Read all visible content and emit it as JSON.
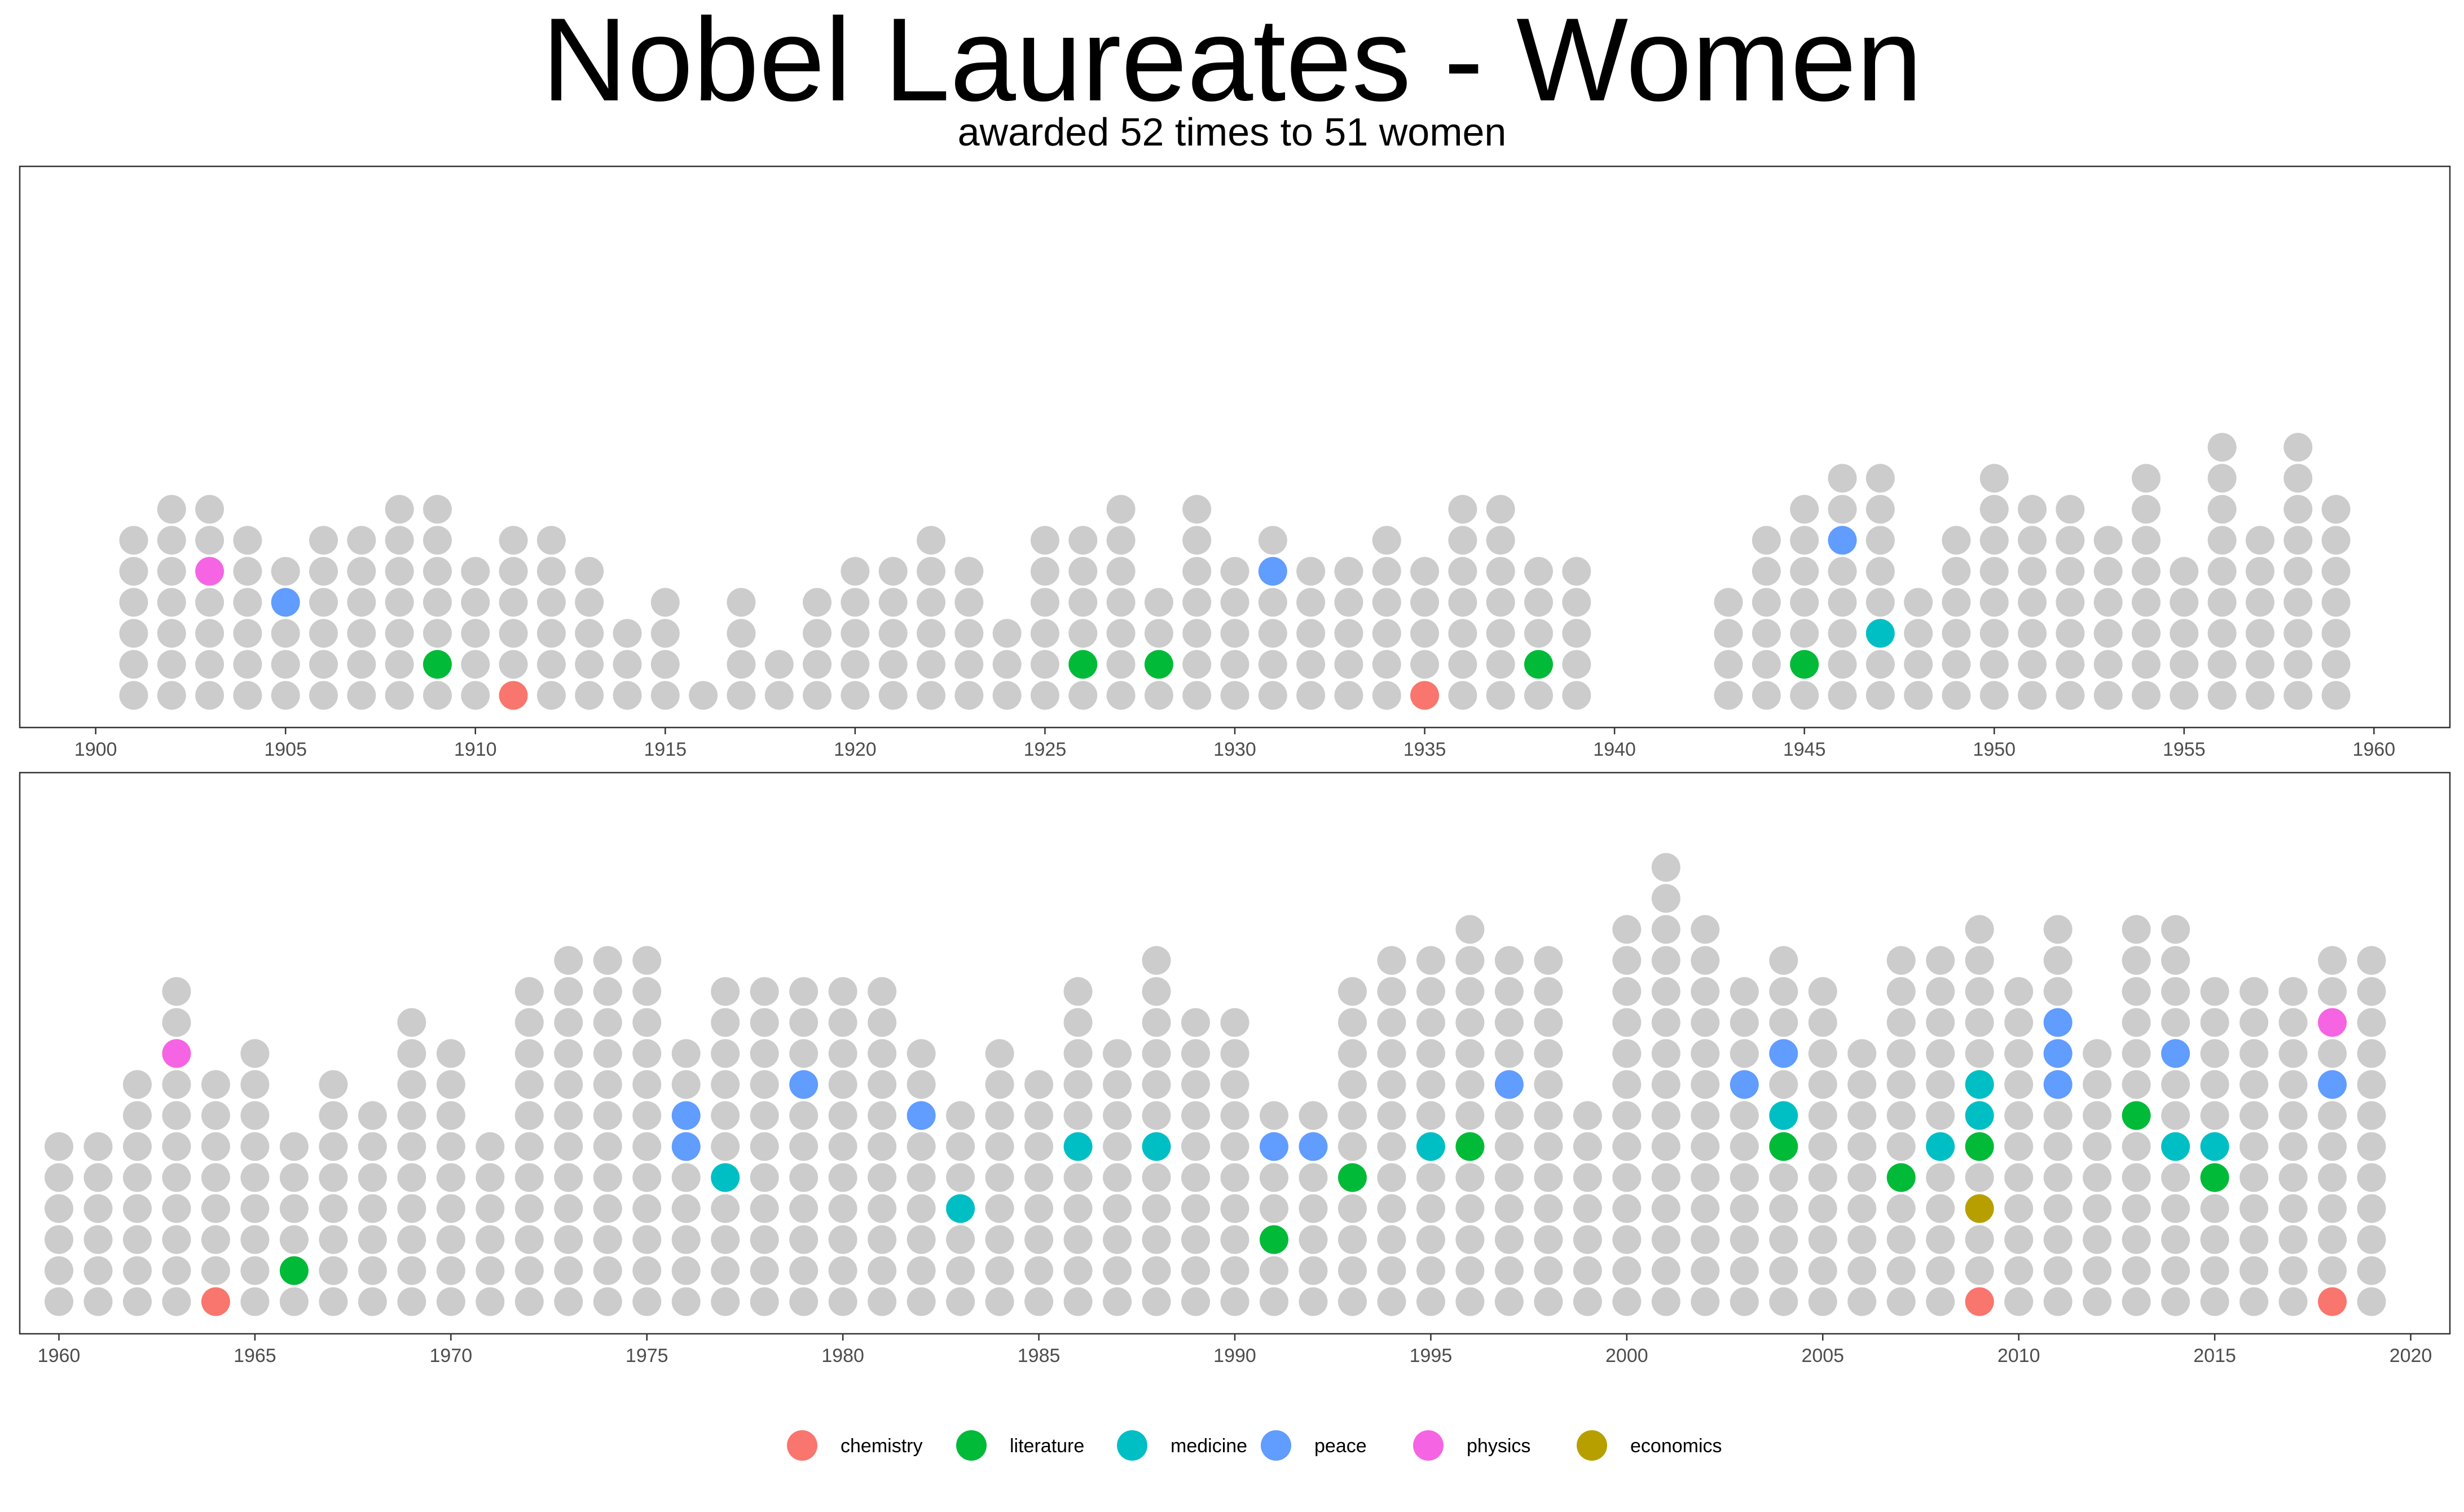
{
  "title": "Nobel Laureates - Women",
  "subtitle": "awarded 52 times to 51 women",
  "chart_data": {
    "type": "scatter",
    "description_style": "dot/waffle column chart: one dot per Nobel Prize awarded in a year; colored dots are prizes awarded to women",
    "background_color": "#cccccc",
    "legend": {
      "position": "bottom",
      "entries": [
        {
          "label": "chemistry",
          "color": "#F8766D"
        },
        {
          "label": "literature",
          "color": "#00BA38"
        },
        {
          "label": "medicine",
          "color": "#00BFC4"
        },
        {
          "label": "peace",
          "color": "#619CFF"
        },
        {
          "label": "physics",
          "color": "#F564E3"
        },
        {
          "label": "economics",
          "color": "#B79F00"
        }
      ]
    },
    "panels": [
      {
        "xlim": [
          1898,
          1962
        ],
        "x_ticks": [
          "1900",
          "1905",
          "1910",
          "1915",
          "1920",
          "1925",
          "1930",
          "1935",
          "1940",
          "1945",
          "1950",
          "1955",
          "1960"
        ],
        "x_tick_values": [
          1900,
          1905,
          1910,
          1915,
          1920,
          1925,
          1930,
          1935,
          1940,
          1945,
          1950,
          1955,
          1960
        ],
        "grid": false,
        "counts": {
          "1901": 6,
          "1902": 7,
          "1903": 7,
          "1904": 6,
          "1905": 5,
          "1906": 6,
          "1907": 6,
          "1908": 7,
          "1909": 7,
          "1910": 5,
          "1911": 6,
          "1912": 6,
          "1913": 5,
          "1914": 3,
          "1915": 4,
          "1916": 1,
          "1917": 4,
          "1918": 2,
          "1919": 4,
          "1920": 5,
          "1921": 5,
          "1922": 6,
          "1923": 5,
          "1924": 3,
          "1925": 6,
          "1926": 6,
          "1927": 7,
          "1928": 4,
          "1929": 7,
          "1930": 5,
          "1931": 6,
          "1932": 5,
          "1933": 5,
          "1934": 6,
          "1935": 5,
          "1936": 7,
          "1937": 7,
          "1938": 5,
          "1939": 5,
          "1943": 4,
          "1944": 6,
          "1945": 7,
          "1946": 8,
          "1947": 8,
          "1948": 4,
          "1949": 6,
          "1950": 8,
          "1951": 7,
          "1952": 7,
          "1953": 6,
          "1954": 8,
          "1955": 5,
          "1956": 9,
          "1957": 6,
          "1958": 9,
          "1959": 7
        },
        "highlights": [
          {
            "year": 1903,
            "row": 5,
            "category": "physics"
          },
          {
            "year": 1905,
            "row": 4,
            "category": "peace"
          },
          {
            "year": 1909,
            "row": 2,
            "category": "literature"
          },
          {
            "year": 1911,
            "row": 1,
            "category": "chemistry"
          },
          {
            "year": 1926,
            "row": 2,
            "category": "literature"
          },
          {
            "year": 1928,
            "row": 2,
            "category": "literature"
          },
          {
            "year": 1931,
            "row": 5,
            "category": "peace"
          },
          {
            "year": 1935,
            "row": 1,
            "category": "chemistry"
          },
          {
            "year": 1938,
            "row": 2,
            "category": "literature"
          },
          {
            "year": 1945,
            "row": 2,
            "category": "literature"
          },
          {
            "year": 1946,
            "row": 6,
            "category": "peace"
          },
          {
            "year": 1947,
            "row": 3,
            "category": "medicine"
          }
        ]
      },
      {
        "xlim": [
          1959,
          2021
        ],
        "x_ticks": [
          "1960",
          "1965",
          "1970",
          "1975",
          "1980",
          "1985",
          "1990",
          "1995",
          "2000",
          "2005",
          "2010",
          "2015",
          "2020"
        ],
        "x_tick_values": [
          1960,
          1965,
          1970,
          1975,
          1980,
          1985,
          1990,
          1995,
          2000,
          2005,
          2010,
          2015,
          2020
        ],
        "grid": false,
        "counts": {
          "1960": 6,
          "1961": 6,
          "1962": 8,
          "1963": 11,
          "1964": 8,
          "1965": 9,
          "1966": 6,
          "1967": 8,
          "1968": 7,
          "1969": 10,
          "1970": 9,
          "1971": 6,
          "1972": 11,
          "1973": 12,
          "1974": 12,
          "1975": 12,
          "1976": 9,
          "1977": 11,
          "1978": 11,
          "1979": 11,
          "1980": 11,
          "1981": 11,
          "1982": 9,
          "1983": 7,
          "1984": 9,
          "1985": 8,
          "1986": 11,
          "1987": 9,
          "1988": 12,
          "1989": 10,
          "1990": 10,
          "1991": 7,
          "1992": 7,
          "1993": 11,
          "1994": 12,
          "1995": 12,
          "1996": 13,
          "1997": 12,
          "1998": 12,
          "1999": 7,
          "2000": 13,
          "2001": 15,
          "2002": 13,
          "2003": 11,
          "2004": 12,
          "2005": 11,
          "2006": 9,
          "2007": 12,
          "2008": 12,
          "2009": 13,
          "2010": 11,
          "2011": 13,
          "2012": 9,
          "2013": 13,
          "2014": 13,
          "2015": 11,
          "2016": 11,
          "2017": 11,
          "2018": 12,
          "2019": 12
        },
        "highlights": [
          {
            "year": 1963,
            "row": 9,
            "category": "physics"
          },
          {
            "year": 1964,
            "row": 1,
            "category": "chemistry"
          },
          {
            "year": 1966,
            "row": 2,
            "category": "literature"
          },
          {
            "year": 1976,
            "row": 6,
            "category": "peace"
          },
          {
            "year": 1976,
            "row": 7,
            "category": "peace"
          },
          {
            "year": 1977,
            "row": 5,
            "category": "medicine"
          },
          {
            "year": 1979,
            "row": 8,
            "category": "peace"
          },
          {
            "year": 1982,
            "row": 7,
            "category": "peace"
          },
          {
            "year": 1983,
            "row": 4,
            "category": "medicine"
          },
          {
            "year": 1986,
            "row": 6,
            "category": "medicine"
          },
          {
            "year": 1988,
            "row": 6,
            "category": "medicine"
          },
          {
            "year": 1991,
            "row": 3,
            "category": "literature"
          },
          {
            "year": 1991,
            "row": 6,
            "category": "peace"
          },
          {
            "year": 1992,
            "row": 6,
            "category": "peace"
          },
          {
            "year": 1993,
            "row": 5,
            "category": "literature"
          },
          {
            "year": 1995,
            "row": 6,
            "category": "medicine"
          },
          {
            "year": 1996,
            "row": 6,
            "category": "literature"
          },
          {
            "year": 1997,
            "row": 8,
            "category": "peace"
          },
          {
            "year": 2003,
            "row": 8,
            "category": "peace"
          },
          {
            "year": 2004,
            "row": 6,
            "category": "literature"
          },
          {
            "year": 2004,
            "row": 7,
            "category": "medicine"
          },
          {
            "year": 2004,
            "row": 9,
            "category": "peace"
          },
          {
            "year": 2007,
            "row": 5,
            "category": "literature"
          },
          {
            "year": 2008,
            "row": 6,
            "category": "medicine"
          },
          {
            "year": 2009,
            "row": 1,
            "category": "chemistry"
          },
          {
            "year": 2009,
            "row": 4,
            "category": "economics"
          },
          {
            "year": 2009,
            "row": 6,
            "category": "literature"
          },
          {
            "year": 2009,
            "row": 7,
            "category": "medicine"
          },
          {
            "year": 2009,
            "row": 8,
            "category": "medicine"
          },
          {
            "year": 2011,
            "row": 8,
            "category": "peace"
          },
          {
            "year": 2011,
            "row": 9,
            "category": "peace"
          },
          {
            "year": 2011,
            "row": 10,
            "category": "peace"
          },
          {
            "year": 2013,
            "row": 7,
            "category": "literature"
          },
          {
            "year": 2014,
            "row": 6,
            "category": "medicine"
          },
          {
            "year": 2014,
            "row": 9,
            "category": "peace"
          },
          {
            "year": 2015,
            "row": 5,
            "category": "literature"
          },
          {
            "year": 2015,
            "row": 6,
            "category": "medicine"
          },
          {
            "year": 2018,
            "row": 1,
            "category": "chemistry"
          },
          {
            "year": 2018,
            "row": 8,
            "category": "peace"
          },
          {
            "year": 2018,
            "row": 10,
            "category": "physics"
          }
        ]
      }
    ]
  }
}
